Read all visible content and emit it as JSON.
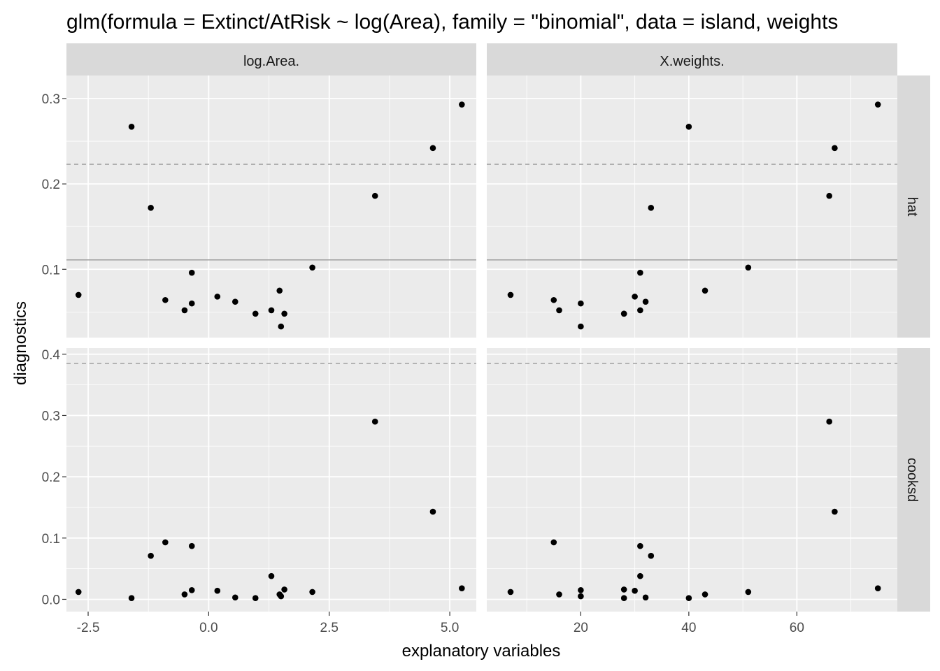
{
  "title": "glm(formula = Extinct/AtRisk ~ log(Area), family = \"binomial\", data = island, weights",
  "xlabel": "explanatory variables",
  "ylabel": "diagnostics",
  "colors": {
    "panel_bg": "#ebebeb",
    "strip_bg": "#d9d9d9",
    "grid": "#ffffff",
    "point": "#000000",
    "ref_solid": "#a6a6a6",
    "ref_dashed": "#a6a6a6",
    "tick_text": "#4d4d4d"
  },
  "chart_data": {
    "type": "scatter",
    "facet_columns": [
      {
        "label": "log.Area.",
        "xlim": [
          -2.95,
          5.55
        ],
        "ticks": [
          -2.5,
          0.0,
          2.5,
          5.0
        ],
        "tick_labels": [
          "-2.5",
          "0.0",
          "2.5",
          "5.0"
        ]
      },
      {
        "label": "X.weights.",
        "xlim": [
          2.6,
          78.6
        ],
        "ticks": [
          20,
          40,
          60
        ],
        "tick_labels": [
          "20",
          "40",
          "60"
        ]
      }
    ],
    "facet_rows": [
      {
        "label": "hat",
        "ylim": [
          0.02,
          0.327
        ],
        "ticks": [
          0.1,
          0.2,
          0.3
        ],
        "tick_labels": [
          "0.1",
          "0.2",
          "0.3"
        ],
        "solid_ref": 0.111,
        "dashed_ref": 0.223
      },
      {
        "label": "cooksd",
        "ylim": [
          -0.02,
          0.41
        ],
        "ticks": [
          0.0,
          0.1,
          0.2,
          0.3,
          0.4
        ],
        "tick_labels": [
          "0.0",
          "0.1",
          "0.2",
          "0.3",
          "0.4"
        ],
        "solid_ref": null,
        "dashed_ref": 0.385
      }
    ],
    "observations": [
      {
        "log_area": -2.7,
        "weights": 7,
        "hat": 0.07,
        "cooksd": 0.012
      },
      {
        "log_area": -1.6,
        "weights": 40,
        "hat": 0.267,
        "cooksd": 0.002
      },
      {
        "log_area": -1.2,
        "weights": 33,
        "hat": 0.172,
        "cooksd": 0.071
      },
      {
        "log_area": -0.9,
        "weights": 15,
        "hat": 0.064,
        "cooksd": 0.093
      },
      {
        "log_area": -0.5,
        "weights": 16,
        "hat": 0.052,
        "cooksd": 0.008
      },
      {
        "log_area": -0.35,
        "weights": 31,
        "hat": 0.096,
        "cooksd": 0.087
      },
      {
        "log_area": -0.35,
        "weights": 20,
        "hat": 0.06,
        "cooksd": 0.015
      },
      {
        "log_area": 0.18,
        "weights": 30,
        "hat": 0.068,
        "cooksd": 0.014
      },
      {
        "log_area": 0.55,
        "weights": 32,
        "hat": 0.062,
        "cooksd": 0.003
      },
      {
        "log_area": 0.97,
        "weights": 28,
        "hat": 0.048,
        "cooksd": 0.002
      },
      {
        "log_area": 1.3,
        "weights": 31,
        "hat": 0.052,
        "cooksd": 0.038
      },
      {
        "log_area": 1.47,
        "weights": 43,
        "hat": 0.075,
        "cooksd": 0.008
      },
      {
        "log_area": 1.5,
        "weights": 20,
        "hat": 0.033,
        "cooksd": 0.005
      },
      {
        "log_area": 1.57,
        "weights": 28,
        "hat": 0.048,
        "cooksd": 0.016
      },
      {
        "log_area": 2.15,
        "weights": 51,
        "hat": 0.102,
        "cooksd": 0.012
      },
      {
        "log_area": 3.45,
        "weights": 66,
        "hat": 0.186,
        "cooksd": 0.29
      },
      {
        "log_area": 4.65,
        "weights": 67,
        "hat": 0.242,
        "cooksd": 0.143
      },
      {
        "log_area": 5.25,
        "weights": 75,
        "hat": 0.293,
        "cooksd": 0.018
      }
    ]
  }
}
